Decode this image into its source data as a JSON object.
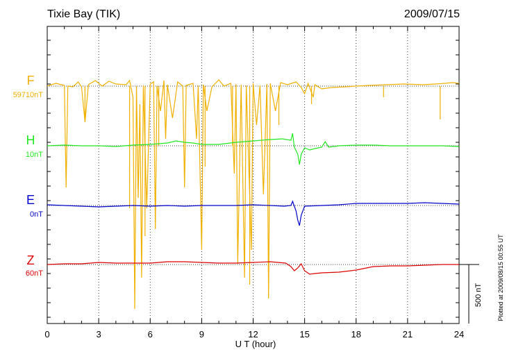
{
  "chart_data": {
    "type": "line",
    "title": "Tixie Bay (TIK)",
    "date": "2009/07/15",
    "xlabel": "U T (hour)",
    "xlim": [
      0,
      24
    ],
    "x_ticks": [
      "0",
      "3",
      "6",
      "9",
      "12",
      "15",
      "18",
      "21",
      "24"
    ],
    "scale_bar_label": "500 nT",
    "plotted_note": "Plotted at 2009/08/15 00:55 UT",
    "grid": "dotted vertical at 3h intervals, dotted baselines per channel",
    "series": [
      {
        "name": "F",
        "baseline": "59710nT",
        "color": "#f0b000",
        "points": [
          [
            0,
            124
          ],
          [
            0.5,
            120
          ],
          [
            1.0,
            123
          ],
          [
            1.1,
            270
          ],
          [
            1.2,
            124
          ],
          [
            1.5,
            125
          ],
          [
            1.8,
            118
          ],
          [
            2.0,
            125
          ],
          [
            2.2,
            176
          ],
          [
            2.4,
            122
          ],
          [
            2.8,
            116
          ],
          [
            3.2,
            124
          ],
          [
            3.6,
            117
          ],
          [
            4.0,
            121
          ],
          [
            4.6,
            122
          ],
          [
            4.8,
            116
          ],
          [
            5.0,
            140
          ],
          [
            5.1,
            445
          ],
          [
            5.2,
            124
          ],
          [
            5.3,
            285
          ],
          [
            5.4,
            150
          ],
          [
            5.5,
            400
          ],
          [
            5.6,
            123
          ],
          [
            5.8,
            300
          ],
          [
            6.0,
            121
          ],
          [
            6.2,
            118
          ],
          [
            6.3,
            330
          ],
          [
            6.4,
            124
          ],
          [
            6.6,
            160
          ],
          [
            6.8,
            116
          ],
          [
            6.9,
            200
          ],
          [
            7.0,
            122
          ],
          [
            7.3,
            170
          ],
          [
            7.6,
            118
          ],
          [
            7.9,
            124
          ],
          [
            8.0,
            270
          ],
          [
            8.1,
            123
          ],
          [
            8.5,
            120
          ],
          [
            8.7,
            200
          ],
          [
            8.8,
            123
          ],
          [
            9.0,
            360
          ],
          [
            9.1,
            122
          ],
          [
            9.3,
            160
          ],
          [
            9.6,
            125
          ],
          [
            10.0,
            115
          ],
          [
            10.3,
            124
          ],
          [
            10.7,
            120
          ],
          [
            10.9,
            250
          ],
          [
            11.0,
            121
          ],
          [
            11.1,
            380
          ],
          [
            11.3,
            122
          ],
          [
            11.5,
            400
          ],
          [
            11.6,
            123
          ],
          [
            11.9,
            360
          ],
          [
            12.0,
            120
          ],
          [
            12.2,
            180
          ],
          [
            12.4,
            123
          ],
          [
            12.6,
            280
          ],
          [
            12.8,
            121
          ],
          [
            12.9,
            430
          ],
          [
            13.0,
            120
          ],
          [
            13.3,
            160
          ],
          [
            13.6,
            119
          ],
          [
            14.0,
            122
          ],
          [
            14.5,
            118
          ],
          [
            14.8,
            126
          ],
          [
            15.0,
            135
          ],
          [
            15.2,
            120
          ],
          [
            15.5,
            140
          ],
          [
            15.6,
            122
          ],
          [
            16.0,
            128
          ],
          [
            16.6,
            126
          ],
          [
            17.4,
            125
          ],
          [
            18.0,
            124
          ],
          [
            18.8,
            123
          ],
          [
            19.8,
            122
          ],
          [
            20.8,
            121
          ],
          [
            21.9,
            122
          ],
          [
            22.6,
            121
          ],
          [
            23.2,
            120
          ],
          [
            23.6,
            119
          ],
          [
            24.0,
            120
          ]
        ],
        "dips": [
          [
            2.2,
            170
          ],
          [
            4.8,
            300
          ],
          [
            5.7,
            340
          ],
          [
            6.5,
            210
          ],
          [
            9.2,
            240
          ],
          [
            10.8,
            210
          ],
          [
            11.8,
            410
          ],
          [
            13.5,
            180
          ],
          [
            15.4,
            150
          ],
          [
            19.6,
            140
          ],
          [
            22.9,
            172
          ]
        ]
      },
      {
        "name": "H",
        "baseline": "10nT",
        "color": "#1ee81e",
        "points": [
          [
            0,
            210
          ],
          [
            1,
            209
          ],
          [
            2,
            210
          ],
          [
            3,
            210
          ],
          [
            4,
            211
          ],
          [
            5,
            209
          ],
          [
            6,
            208
          ],
          [
            7,
            206
          ],
          [
            7.5,
            203
          ],
          [
            8,
            205
          ],
          [
            8.5,
            206
          ],
          [
            9,
            208
          ],
          [
            10,
            208
          ],
          [
            11,
            205
          ],
          [
            12,
            203
          ],
          [
            13,
            201
          ],
          [
            13.7,
            200
          ],
          [
            14.2,
            202
          ],
          [
            14.3,
            192
          ],
          [
            14.4,
            212
          ],
          [
            14.6,
            222
          ],
          [
            14.7,
            237
          ],
          [
            14.8,
            222
          ],
          [
            15.0,
            213
          ],
          [
            15.3,
            216
          ],
          [
            15.6,
            214
          ],
          [
            16.0,
            212
          ],
          [
            16.2,
            204
          ],
          [
            16.4,
            212
          ],
          [
            17,
            210
          ],
          [
            18,
            209
          ],
          [
            19,
            209
          ],
          [
            20,
            210
          ],
          [
            21,
            210
          ],
          [
            22,
            210
          ],
          [
            23,
            210
          ],
          [
            24,
            211
          ]
        ]
      },
      {
        "name": "E",
        "baseline": "0nT",
        "color": "#0000cc",
        "points": [
          [
            0,
            295
          ],
          [
            1,
            296
          ],
          [
            2,
            297
          ],
          [
            3,
            298
          ],
          [
            4,
            297
          ],
          [
            5,
            296
          ],
          [
            6,
            297
          ],
          [
            7,
            296
          ],
          [
            8,
            297
          ],
          [
            9,
            296
          ],
          [
            10,
            296
          ],
          [
            11,
            296
          ],
          [
            12,
            295
          ],
          [
            13,
            296
          ],
          [
            13.8,
            297
          ],
          [
            14.2,
            296
          ],
          [
            14.3,
            290
          ],
          [
            14.5,
            304
          ],
          [
            14.6,
            317
          ],
          [
            14.7,
            325
          ],
          [
            14.8,
            310
          ],
          [
            15.0,
            297
          ],
          [
            16,
            296
          ],
          [
            17,
            295
          ],
          [
            18,
            293
          ],
          [
            19,
            293
          ],
          [
            20,
            293
          ],
          [
            21,
            293
          ],
          [
            22,
            292
          ],
          [
            23,
            293
          ],
          [
            24,
            294
          ]
        ]
      },
      {
        "name": "Z",
        "baseline": "60nT",
        "color": "#dd0000",
        "points": [
          [
            0,
            381
          ],
          [
            1,
            380
          ],
          [
            2,
            380
          ],
          [
            3,
            378
          ],
          [
            4,
            379
          ],
          [
            5,
            379
          ],
          [
            6,
            379
          ],
          [
            7,
            377
          ],
          [
            8,
            377
          ],
          [
            9,
            378
          ],
          [
            10,
            379
          ],
          [
            11,
            379
          ],
          [
            12,
            378
          ],
          [
            13,
            377
          ],
          [
            13.9,
            379
          ],
          [
            14.2,
            384
          ],
          [
            14.4,
            390
          ],
          [
            14.6,
            386
          ],
          [
            14.8,
            380
          ],
          [
            15.0,
            390
          ],
          [
            15.3,
            395
          ],
          [
            15.6,
            394
          ],
          [
            16,
            393
          ],
          [
            17,
            392
          ],
          [
            18,
            389
          ],
          [
            19,
            384
          ],
          [
            20,
            383
          ],
          [
            21,
            383
          ],
          [
            22,
            382
          ],
          [
            23,
            381
          ],
          [
            24,
            381
          ]
        ]
      }
    ]
  }
}
